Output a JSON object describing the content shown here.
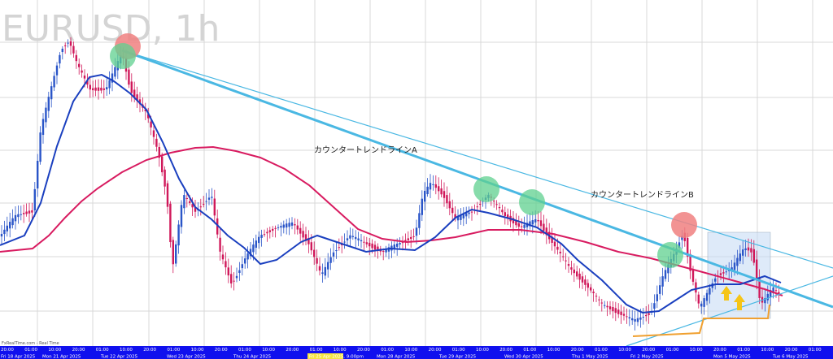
{
  "header": {
    "title": "EURUSD, 1h"
  },
  "annotations": {
    "line_a": "カウンタートレンドラインA",
    "line_b": "カウンタートレンドラインB"
  },
  "footer": {
    "source": "FxRealTime.com - Real Time",
    "time_labels": [
      "20:00",
      "01:00",
      "10:00",
      "20:00",
      "01:00",
      "10:00",
      "20:00",
      "01:00",
      "10:00",
      "20:00",
      "01:00",
      "10:00",
      "20:00",
      "01:00",
      "10:00",
      "20:00",
      "01:00",
      "10:00",
      "20:00",
      "01:00",
      "10:00",
      "20:00",
      "01:00",
      "10:00",
      "20:00",
      "01:00",
      "10:00",
      "20:00",
      "01:00",
      "10:00",
      "20:00",
      "01:00",
      "10:00",
      "20:00",
      "01:00"
    ],
    "date_labels": [
      "Fri 18 Apr 2025",
      "Mon 21 Apr 2025",
      "Tue 22 Apr 2025",
      "Wed 23 Apr 2025",
      "Thu 24 Apr 2025",
      "Fri 25 Apr 2025, 9:00pm",
      "Mon 28 Apr 2025",
      "Tue 29 Apr 2025",
      "Wed 30 Apr 2025",
      "Thu 1 May 2025",
      "Fri 2 May 2025",
      "Mon 5 May 2025",
      "Tue 6 May 2025"
    ]
  }
}
